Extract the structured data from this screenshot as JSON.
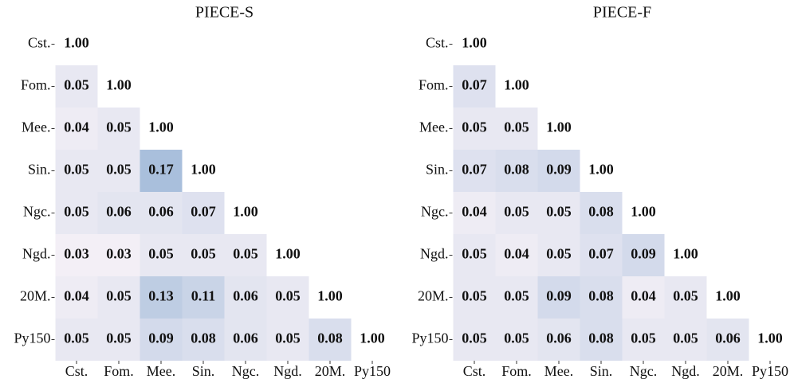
{
  "chart_data": [
    {
      "type": "heatmap",
      "title": "PIECE-S",
      "x_categories": [
        "Cst.",
        "Fom.",
        "Mee.",
        "Sin.",
        "Ngc.",
        "Ngd.",
        "20M.",
        "Py150"
      ],
      "y_categories": [
        "Cst.",
        "Fom.",
        "Mee.",
        "Sin.",
        "Ngc.",
        "Ngd.",
        "20M.",
        "Py150"
      ],
      "values": [
        [
          1,
          null,
          null,
          null,
          null,
          null,
          null,
          null
        ],
        [
          0.05,
          1,
          null,
          null,
          null,
          null,
          null,
          null
        ],
        [
          0.04,
          0.05,
          1,
          null,
          null,
          null,
          null,
          null
        ],
        [
          0.05,
          0.05,
          0.17,
          1,
          null,
          null,
          null,
          null
        ],
        [
          0.05,
          0.06,
          0.06,
          0.07,
          1,
          null,
          null,
          null
        ],
        [
          0.03,
          0.03,
          0.05,
          0.05,
          0.05,
          1,
          null,
          null
        ],
        [
          0.04,
          0.05,
          0.13,
          0.11,
          0.06,
          0.05,
          1,
          null
        ],
        [
          0.05,
          0.05,
          0.09,
          0.08,
          0.06,
          0.05,
          0.08,
          1
        ]
      ],
      "value_labels": [
        [
          "1.00",
          null,
          null,
          null,
          null,
          null,
          null,
          null
        ],
        [
          "0.05",
          "1.00",
          null,
          null,
          null,
          null,
          null,
          null
        ],
        [
          "0.04",
          "0.05",
          "1.00",
          null,
          null,
          null,
          null,
          null
        ],
        [
          "0.05",
          "0.05",
          "0.17",
          "1.00",
          null,
          null,
          null,
          null
        ],
        [
          "0.05",
          "0.06",
          "0.06",
          "0.07",
          "1.00",
          null,
          null,
          null
        ],
        [
          "0.03",
          "0.03",
          "0.05",
          "0.05",
          "0.05",
          "1.00",
          null,
          null
        ],
        [
          "0.04",
          "0.05",
          "0.13",
          "0.11",
          "0.06",
          "0.05",
          "1.00",
          null
        ],
        [
          "0.05",
          "0.05",
          "0.09",
          "0.08",
          "0.06",
          "0.05",
          "0.08",
          "1.00"
        ]
      ],
      "cmap": [
        "#f3eff6",
        "#a9bfdc"
      ],
      "vmin": 0.03,
      "vmax": 0.17,
      "over_color": "#ffffff"
    },
    {
      "type": "heatmap",
      "title": "PIECE-F",
      "x_categories": [
        "Cst.",
        "Fom.",
        "Mee.",
        "Sin.",
        "Ngc.",
        "Ngd.",
        "20M.",
        "Py150"
      ],
      "y_categories": [
        "Cst.",
        "Fom.",
        "Mee.",
        "Sin.",
        "Ngc.",
        "Ngd.",
        "20M.",
        "Py150"
      ],
      "values": [
        [
          1,
          null,
          null,
          null,
          null,
          null,
          null,
          null
        ],
        [
          0.07,
          1,
          null,
          null,
          null,
          null,
          null,
          null
        ],
        [
          0.05,
          0.05,
          1,
          null,
          null,
          null,
          null,
          null
        ],
        [
          0.07,
          0.08,
          0.09,
          1,
          null,
          null,
          null,
          null
        ],
        [
          0.04,
          0.05,
          0.05,
          0.08,
          1,
          null,
          null,
          null
        ],
        [
          0.05,
          0.04,
          0.05,
          0.07,
          0.09,
          1,
          null,
          null
        ],
        [
          0.05,
          0.05,
          0.09,
          0.08,
          0.04,
          0.05,
          1,
          null
        ],
        [
          0.05,
          0.05,
          0.06,
          0.08,
          0.05,
          0.05,
          0.06,
          1
        ]
      ],
      "value_labels": [
        [
          "1.00",
          null,
          null,
          null,
          null,
          null,
          null,
          null
        ],
        [
          "0.07",
          "1.00",
          null,
          null,
          null,
          null,
          null,
          null
        ],
        [
          "0.05",
          "0.05",
          "1.00",
          null,
          null,
          null,
          null,
          null
        ],
        [
          "0.07",
          "0.08",
          "0.09",
          "1.00",
          null,
          null,
          null,
          null
        ],
        [
          "0.04",
          "0.05",
          "0.05",
          "0.08",
          "1.00",
          null,
          null,
          null
        ],
        [
          "0.05",
          "0.04",
          "0.05",
          "0.07",
          "0.09",
          "1.00",
          null,
          null
        ],
        [
          "0.05",
          "0.05",
          "0.09",
          "0.08",
          "0.04",
          "0.05",
          "1.00",
          null
        ],
        [
          "0.05",
          "0.05",
          "0.06",
          "0.08",
          "0.05",
          "0.05",
          "0.06",
          "1.00"
        ]
      ],
      "cmap": [
        "#f3eff6",
        "#a9bfdc"
      ],
      "vmin": 0.03,
      "vmax": 0.17,
      "over_color": "#ffffff"
    }
  ]
}
